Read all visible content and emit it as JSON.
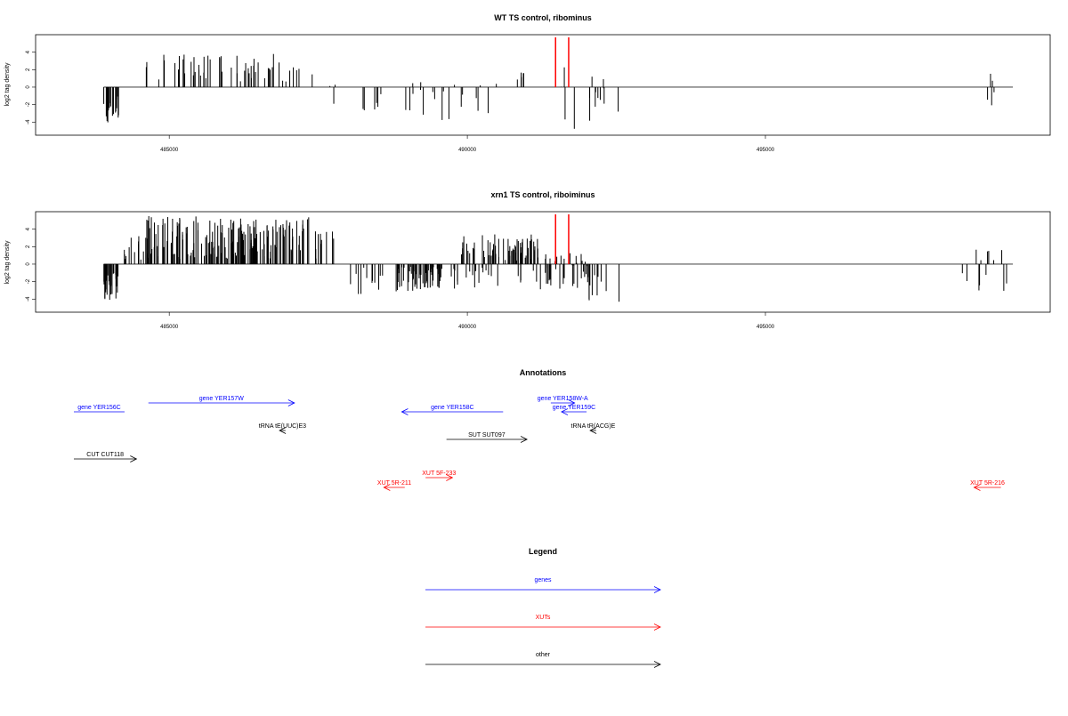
{
  "colors": {
    "genes": "#0000FF",
    "xuts": "#FF0000",
    "other": "#000000",
    "marker": "#FF0000"
  },
  "chart_data": [
    {
      "type": "bar",
      "title": "WT TS control, ribominus",
      "ylabel": "log2 tag density",
      "xlim": [
        483400,
        499150
      ],
      "ylim": [
        -5.5,
        6
      ],
      "yticks": [
        -4,
        -2,
        0,
        2,
        4
      ],
      "xticks": [
        485000,
        490000,
        495000
      ],
      "xtick_labels": [
        "485000",
        "490000",
        "495000"
      ],
      "markers": [
        491480,
        491700
      ],
      "dense_regions": [
        {
          "start": 483900,
          "end": 484150,
          "density": 22,
          "min": -4.3,
          "max": -1.0
        },
        {
          "start": 484600,
          "end": 487200,
          "density": 55,
          "min": 0.6,
          "max": 3.8
        },
        {
          "start": 487350,
          "end": 487900,
          "density": 4,
          "min": -2.0,
          "max": 1.8
        },
        {
          "start": 488150,
          "end": 488600,
          "density": 6,
          "min": -3.0,
          "max": -0.5
        },
        {
          "start": 488900,
          "end": 490500,
          "density": 20,
          "min": -4.0,
          "max": 1.5
        },
        {
          "start": 490800,
          "end": 490950,
          "density": 5,
          "min": 0.5,
          "max": 2.8
        },
        {
          "start": 491550,
          "end": 492300,
          "density": 14,
          "min": -4.8,
          "max": 2.4
        },
        {
          "start": 492500,
          "end": 492560,
          "density": 1,
          "min": -2.8,
          "max": -2.8
        },
        {
          "start": 498650,
          "end": 498850,
          "density": 5,
          "min": -2.3,
          "max": 1.6
        }
      ]
    },
    {
      "type": "bar",
      "title": "xrn1 TS control, riboiminus",
      "ylabel": "log2 tag density",
      "xlim": [
        483400,
        499150
      ],
      "ylim": [
        -5.5,
        6
      ],
      "yticks": [
        -4,
        -2,
        0,
        2,
        4
      ],
      "xticks": [
        485000,
        490000,
        495000
      ],
      "xtick_labels": [
        "485000",
        "490000",
        "495000"
      ],
      "markers": [
        491480,
        491700
      ],
      "dense_regions": [
        {
          "start": 483900,
          "end": 484150,
          "density": 30,
          "min": -4.2,
          "max": -1.0
        },
        {
          "start": 484150,
          "end": 484600,
          "density": 12,
          "min": 0.5,
          "max": 3.5
        },
        {
          "start": 484600,
          "end": 487350,
          "density": 180,
          "min": 0.6,
          "max": 5.5
        },
        {
          "start": 487350,
          "end": 487800,
          "density": 10,
          "min": 0.3,
          "max": 4.0
        },
        {
          "start": 488000,
          "end": 488600,
          "density": 12,
          "min": -3.6,
          "max": -0.4
        },
        {
          "start": 488800,
          "end": 489600,
          "density": 60,
          "min": -3.2,
          "max": -0.3
        },
        {
          "start": 489900,
          "end": 491200,
          "density": 70,
          "min": 0.4,
          "max": 3.4
        },
        {
          "start": 489600,
          "end": 491300,
          "density": 25,
          "min": -3.0,
          "max": -0.4
        },
        {
          "start": 491300,
          "end": 492000,
          "density": 40,
          "min": -3.0,
          "max": 1.4
        },
        {
          "start": 492000,
          "end": 492400,
          "density": 12,
          "min": -4.3,
          "max": -0.8
        },
        {
          "start": 492530,
          "end": 492560,
          "density": 1,
          "min": -4.3,
          "max": -4.3
        },
        {
          "start": 498300,
          "end": 499100,
          "density": 14,
          "min": -3.2,
          "max": 1.8
        }
      ]
    }
  ],
  "annotations": {
    "title": "Annotations",
    "xlim": [
      483400,
      499150
    ],
    "items": [
      {
        "label": "gene YER156C",
        "start": 483400,
        "end": 484250,
        "dir": "none",
        "color": "genes",
        "row": 3
      },
      {
        "label": "gene YER157W",
        "start": 484650,
        "end": 487100,
        "dir": "right",
        "color": "genes",
        "row": 2
      },
      {
        "label": "gene YER158C",
        "start": 488900,
        "end": 490600,
        "dir": "left",
        "color": "genes",
        "row": 3
      },
      {
        "label": "gene YER158W-A",
        "start": 491400,
        "end": 491800,
        "dir": "right",
        "color": "genes",
        "row": 2
      },
      {
        "label": "gene YER159C",
        "start": 491580,
        "end": 492000,
        "dir": "left",
        "color": "genes",
        "row": 3
      },
      {
        "label": "tRNA tE(UUC)E3",
        "start": 486850,
        "end": 486950,
        "dir": "left",
        "color": "other",
        "row": 4
      },
      {
        "label": "tRNA tR(ACG)E",
        "start": 492060,
        "end": 492160,
        "dir": "left",
        "color": "other",
        "row": 4
      },
      {
        "label": "SUT SUT097",
        "start": 489650,
        "end": 491000,
        "dir": "right",
        "color": "other",
        "row": 5
      },
      {
        "label": "CUT CUT118",
        "start": 483400,
        "end": 484450,
        "dir": "right",
        "color": "other",
        "row": 6
      },
      {
        "label": "XUT 5F-233",
        "start": 489300,
        "end": 489750,
        "dir": "right",
        "color": "xuts",
        "row": 7
      },
      {
        "label": "XUT 5R-211",
        "start": 488600,
        "end": 488950,
        "dir": "left",
        "color": "xuts",
        "row": 8
      },
      {
        "label": "XUT 5R-216",
        "start": 498500,
        "end": 498950,
        "dir": "left",
        "color": "xuts",
        "row": 8
      }
    ]
  },
  "legend": {
    "title": "Legend",
    "items": [
      {
        "label": "genes",
        "color": "genes"
      },
      {
        "label": "XUTs",
        "color": "xuts"
      },
      {
        "label": "other",
        "color": "other"
      }
    ]
  }
}
